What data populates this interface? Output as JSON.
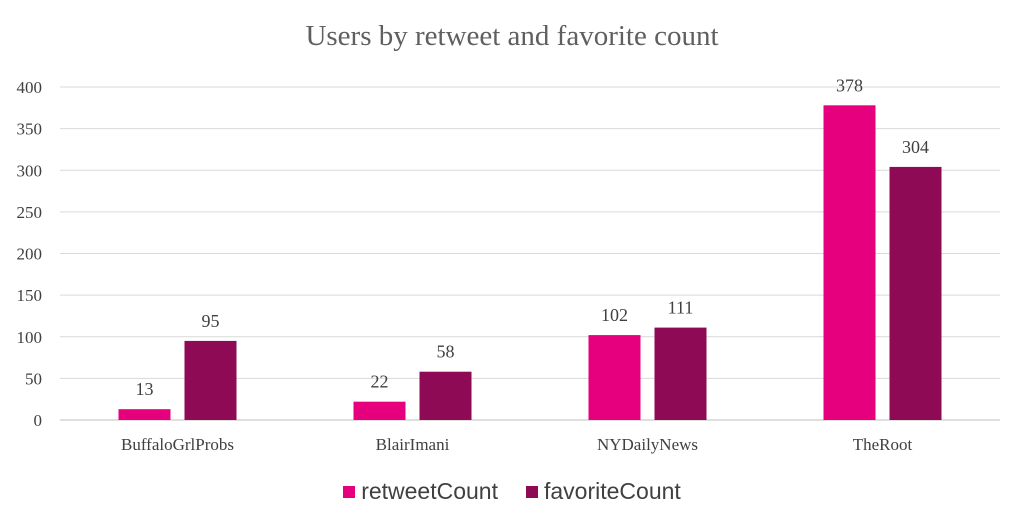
{
  "chart_data": {
    "type": "bar",
    "title": "Users by retweet and favorite count",
    "categories": [
      "BuffaloGrlProbs",
      "BlairImani",
      "NYDailyNews",
      "TheRoot"
    ],
    "series": [
      {
        "name": "retweetCount",
        "values": [
          13,
          22,
          102,
          378
        ],
        "color": "#e6007e"
      },
      {
        "name": "favoriteCount",
        "values": [
          95,
          58,
          111,
          304
        ],
        "color": "#8e0a55"
      }
    ],
    "ylim": [
      0,
      400
    ],
    "yticks": [
      0,
      50,
      100,
      150,
      200,
      250,
      300,
      350,
      400
    ],
    "grid": true,
    "legend_position": "bottom",
    "data_labels": true
  }
}
